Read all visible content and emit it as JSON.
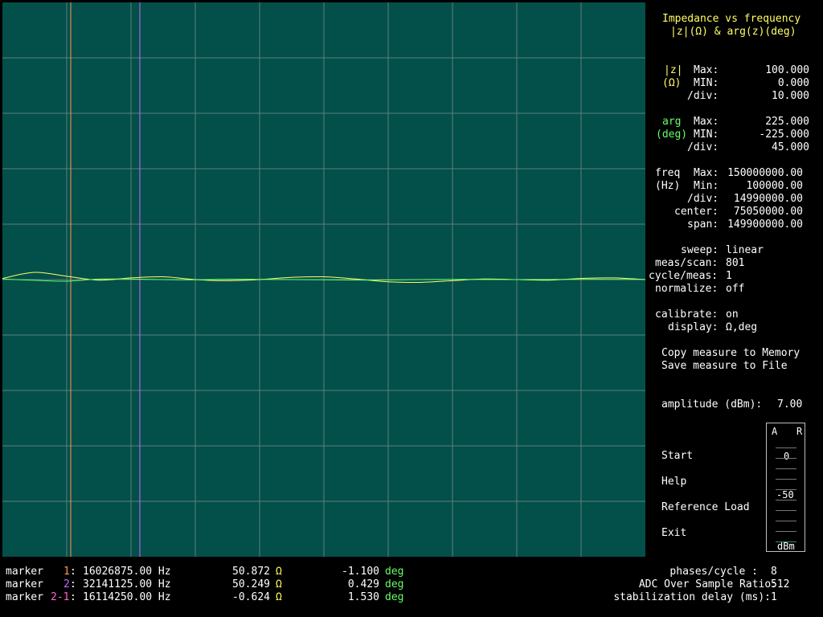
{
  "chart_data": {
    "type": "line",
    "title": "Impedance vs frequency",
    "subtitle": "|z|(Ω) & arg(z)(deg)",
    "xlim": [
      100000,
      150000000
    ],
    "y_left_lim": [
      0,
      100
    ],
    "y_right_lim": [
      -225,
      225
    ],
    "grid": true,
    "x_div": 10,
    "y_div": 10,
    "x": [
      100000,
      7590000,
      15080000,
      22570000,
      30060000,
      37550000,
      45040000,
      52530000,
      60020000,
      67510000,
      75000000,
      82490000,
      89980000,
      97470000,
      104960000,
      112450000,
      119940000,
      127430000,
      134920000,
      142410000,
      150000000
    ],
    "series": [
      {
        "color": "#ffff66",
        "axis": "|z| (Ω)",
        "values": [
          50.2,
          51.3,
          50.6,
          49.9,
          50.3,
          50.5,
          50.0,
          49.8,
          50.0,
          50.4,
          50.5,
          50.1,
          49.6,
          49.5,
          49.8,
          50.1,
          50.0,
          49.9,
          50.2,
          50.3,
          50.0
        ]
      },
      {
        "color": "#66ff66",
        "axis": "arg (deg)",
        "values": [
          0.5,
          -0.6,
          -1.3,
          0.4,
          0.4,
          0.0,
          -0.2,
          0.3,
          0.2,
          0.0,
          -0.2,
          -0.4,
          -0.3,
          0.0,
          0.2,
          0.1,
          0.0,
          0.1,
          0.2,
          0.2,
          0.1
        ]
      }
    ],
    "markers": [
      {
        "label": "1",
        "freq": 16026875,
        "color": "#ff9955"
      },
      {
        "label": "2",
        "freq": 32141125,
        "color": "#cc66ff"
      }
    ]
  },
  "panel": {
    "title1": "Impedance vs frequency",
    "title2": "|z|(Ω) & arg(z)(deg)",
    "z_label1": "|z|",
    "z_label2": "(Ω)",
    "z_max_label": "Max:",
    "z_max": "100.000",
    "z_min_label": "MIN:",
    "z_min": "0.000",
    "z_div_label": "/div:",
    "z_div": "10.000",
    "arg_label1": "arg",
    "arg_label2": "(deg)",
    "arg_max_label": "Max:",
    "arg_max": "225.000",
    "arg_min_label": "MIN:",
    "arg_min": "-225.000",
    "arg_div_label": "/div:",
    "arg_div": "45.000",
    "freq_label1": "freq",
    "freq_label2": "(Hz)",
    "freq_max_label": "Max:",
    "freq_max": "150000000.00",
    "freq_min_label": "Min:",
    "freq_min": "100000.00",
    "freq_div_label": "/div:",
    "freq_div": "14990000.00",
    "center_label": "center:",
    "center": "75050000.00",
    "span_label": "span:",
    "span": "149900000.00",
    "sweep_label": "sweep:",
    "sweep": "linear",
    "meas_label": "meas/scan:",
    "meas": "801",
    "cycle_label": "cycle/meas:",
    "cycle": "1",
    "normalize_label": "normalize:",
    "normalize": "off",
    "calibrate_label": "calibrate:",
    "calibrate": "on",
    "display_label": "display:",
    "display": "Ω,deg",
    "copy_memory": "Copy measure to Memory",
    "save_file": "Save measure to File",
    "amplitude_label": "amplitude (dBm):",
    "amplitude": "7.00",
    "start": "Start",
    "help": "Help",
    "reference_load": "Reference Load",
    "exit": "Exit"
  },
  "meter": {
    "a_label": "A",
    "r_label": "R",
    "zero_label": "0",
    "minus50_label": "-50",
    "unit": "dBm"
  },
  "markers_table": [
    {
      "prefix": "marker",
      "id": "1",
      "id_color": "#ff9955",
      "freq": "16026875.00 Hz",
      "z": "50.872",
      "z_unit": "Ω",
      "arg": "-1.100",
      "arg_unit": "deg"
    },
    {
      "prefix": "marker",
      "id": "2",
      "id_color": "#cc66ff",
      "freq": "32141125.00 Hz",
      "z": "50.249",
      "z_unit": "Ω",
      "arg": "0.429",
      "arg_unit": "deg"
    },
    {
      "prefix": "marker",
      "id": "2-1",
      "id_color": "#ff66cc",
      "freq": "16114250.00 Hz",
      "z": "-0.624",
      "z_unit": "Ω",
      "arg": "1.530",
      "arg_unit": "deg"
    }
  ],
  "status": {
    "phases_label": "phases/cycle :",
    "phases": "8",
    "adc_label": "ADC Over Sample Ratio:",
    "adc": "512",
    "stab_label": "stabilization delay (ms):",
    "stab": "1"
  }
}
